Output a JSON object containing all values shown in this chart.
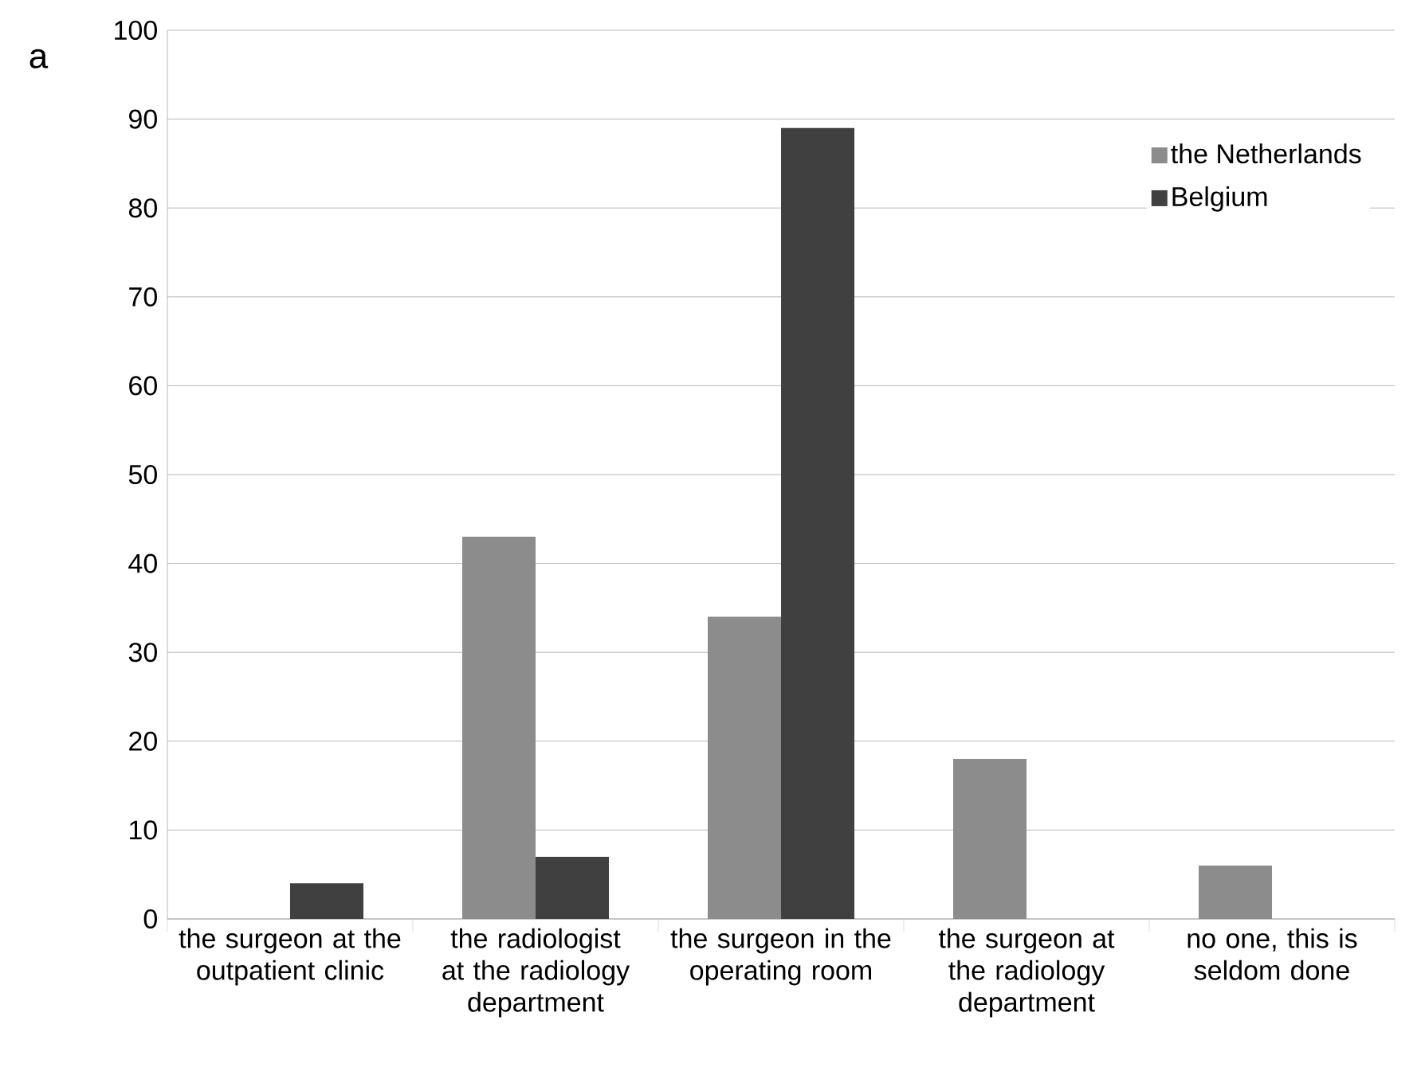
{
  "chart_data": {
    "type": "bar",
    "annotations": [
      "a"
    ],
    "categories": [
      "the surgeon at the outpatient clinic",
      "the radiologist at the radiology department",
      "the surgeon in the operating room",
      "the surgeon at the radiology department",
      "no one, this is seldom done"
    ],
    "series": [
      {
        "name": "the Netherlands",
        "color": "#8c8c8c",
        "values": [
          0,
          43,
          34,
          18,
          6
        ]
      },
      {
        "name": "Belgium",
        "color": "#404040",
        "values": [
          4,
          7,
          89,
          0,
          0
        ]
      }
    ],
    "ylim": [
      0,
      100
    ],
    "yticks": [
      0,
      10,
      20,
      30,
      40,
      50,
      60,
      70,
      80,
      90,
      100
    ],
    "grid": "y",
    "legend": "top right"
  }
}
